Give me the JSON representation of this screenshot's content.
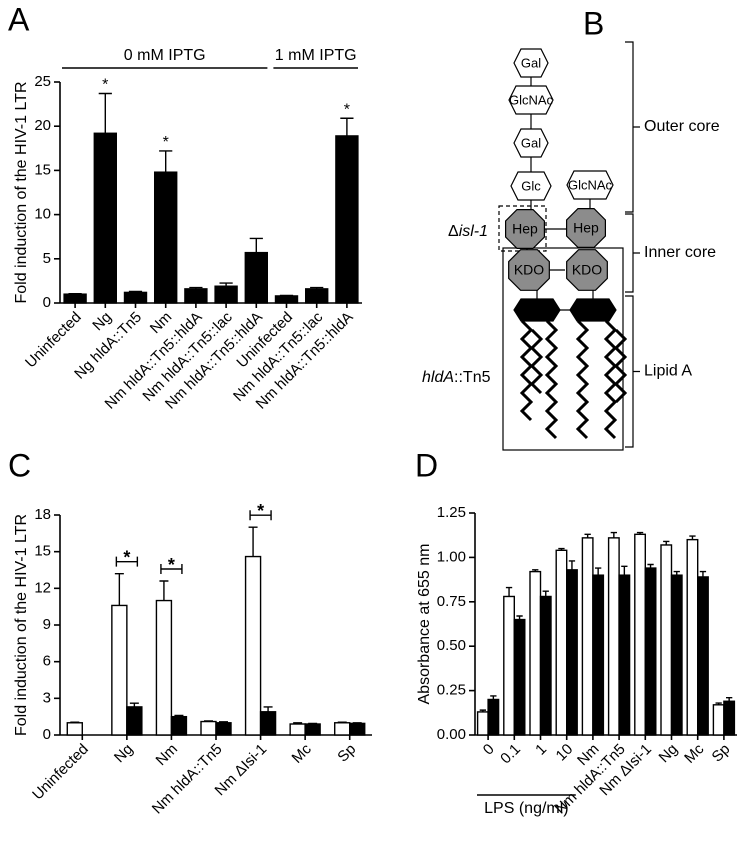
{
  "chart_data": [
    {
      "type": "bar",
      "panel": "A",
      "ylabel": "Fold induction of the HIV-1 LTR",
      "categories": [
        "Uninfected",
        "Ng",
        "Ng hldA::Tn5",
        "Nm",
        "Nm hldA::Tn5::hldA",
        "Nm hldA::Tn5::lac",
        "Nm hldA::Tn5::hldA",
        "Uninfected",
        "Nm hldA::Tn5::lac",
        "Nm hldA::Tn5::hldA"
      ],
      "values": [
        1,
        19.2,
        1.2,
        14.8,
        1.6,
        1.9,
        5.7,
        0.8,
        1.6,
        18.9
      ],
      "errors": [
        0.05,
        4.5,
        0.1,
        2.4,
        0.15,
        0.35,
        1.6,
        0.05,
        0.15,
        2.0
      ],
      "color": "#000000",
      "sig_labels": [
        null,
        "*",
        null,
        "*",
        null,
        null,
        null,
        null,
        null,
        "*"
      ],
      "groups": [
        {
          "label": "0 mM IPTG",
          "span": [
            0,
            6
          ]
        },
        {
          "label": "1 mM IPTG",
          "span": [
            7,
            9
          ]
        }
      ],
      "group_position": "top",
      "ylim": [
        0,
        25
      ],
      "yticks": [
        0,
        5,
        10,
        15,
        20,
        25
      ]
    },
    {
      "type": "bar",
      "panel": "C",
      "ylabel": "Fold induction of the HIV-1 LTR",
      "categories": [
        "Uninfected",
        "Ng",
        "Nm",
        "Nm hldA::Tn5",
        "Nm ΔIsi-1",
        "Mc",
        "Sp"
      ],
      "series": [
        {
          "color": "#ffffff",
          "values": [
            1,
            10.6,
            11.0,
            1.1,
            14.6,
            0.9,
            1.0
          ],
          "errors": [
            0.05,
            2.6,
            1.6,
            0.05,
            2.4,
            0.1,
            0.05
          ]
        },
        {
          "color": "#000000",
          "values": [
            null,
            2.3,
            1.5,
            1.0,
            1.9,
            0.9,
            0.95
          ],
          "errors": [
            null,
            0.3,
            0.1,
            0.08,
            0.4,
            0.05,
            0.05
          ]
        }
      ],
      "sig_labels": [
        null,
        "*",
        "*",
        null,
        "*",
        null,
        null
      ],
      "ylim": [
        0,
        18
      ],
      "yticks": [
        0,
        3,
        6,
        9,
        12,
        15,
        18
      ]
    },
    {
      "type": "bar",
      "panel": "D",
      "ylabel": "Absorbance at 655 nm",
      "categories": [
        "0",
        "0.1",
        "1",
        "10",
        "Nm",
        "Nm hldA::Tn5",
        "Nm ΔIsi-1",
        "Ng",
        "Mc",
        "Sp"
      ],
      "series": [
        {
          "color": "#ffffff",
          "values": [
            0.13,
            0.78,
            0.92,
            1.04,
            1.11,
            1.11,
            1.13,
            1.07,
            1.1,
            0.17
          ],
          "errors": [
            0.01,
            0.05,
            0.01,
            0.01,
            0.02,
            0.03,
            0.01,
            0.02,
            0.02,
            0.01
          ]
        },
        {
          "color": "#000000",
          "values": [
            0.2,
            0.65,
            0.78,
            0.93,
            0.9,
            0.9,
            0.94,
            0.9,
            0.89,
            0.19
          ],
          "errors": [
            0.02,
            0.02,
            0.03,
            0.05,
            0.04,
            0.05,
            0.02,
            0.02,
            0.03,
            0.02
          ]
        }
      ],
      "groups": [
        {
          "label": "LPS (ng/ml)",
          "span": [
            0,
            3
          ]
        }
      ],
      "group_position": "bottom",
      "ylim": [
        0,
        1.25
      ],
      "yticks": [
        {
          "value": 0,
          "label": "0.00"
        },
        {
          "value": 0.25,
          "label": "0.25"
        },
        {
          "value": 0.5,
          "label": "0.50"
        },
        {
          "value": 0.75,
          "label": "0.75"
        },
        {
          "value": 1,
          "label": "1.00"
        },
        {
          "value": 1.25,
          "label": "1.25"
        }
      ]
    }
  ],
  "diagram": {
    "panel": "B",
    "residues": [
      "Gal",
      "GlcNAc",
      "Gal",
      "Glc",
      "GlcNAc",
      "Hep",
      "Hep",
      "KDO",
      "KDO"
    ],
    "mutations": [
      [
        "Δ",
        "isl-1"
      ],
      [
        "hldA",
        "::Tn5"
      ]
    ],
    "regions": [
      "Outer core",
      "Inner core",
      "Lipid A"
    ]
  }
}
